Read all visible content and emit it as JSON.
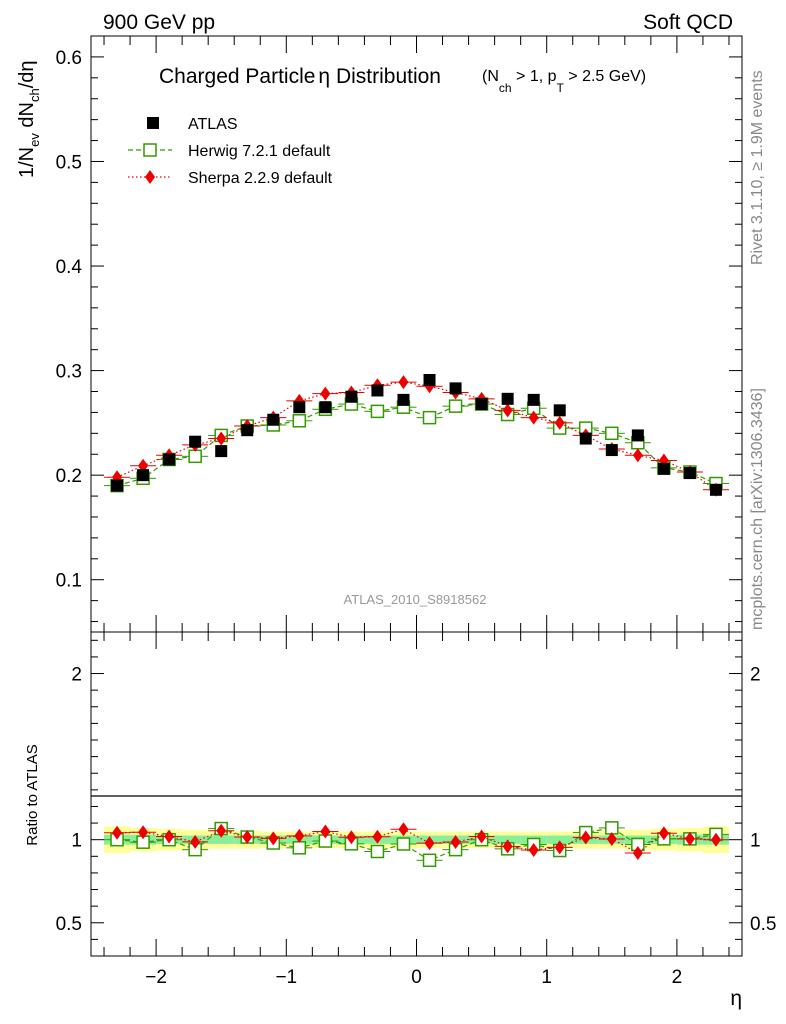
{
  "header": {
    "left": "900 GeV pp",
    "right": "Soft QCD"
  },
  "side_text": {
    "rivet": "Rivet 3.1.10, ≥ 1.9M events",
    "mcplots": "mcplots.cern.ch [arXiv:1306.3436]"
  },
  "chart_data": [
    {
      "type": "scatter",
      "title_main": "Charged Particle",
      "title_eta": "η",
      "title_rest": " Distribution",
      "title_cuts": {
        "open": "(N",
        "nch_sub": "ch",
        "mid": " > 1, p",
        "pt_sub": "T",
        "close": " > 2.5 GeV)"
      },
      "ylabel": {
        "prefix": "1/N",
        "sub1": "ev",
        "mid": " dN",
        "sub2": "ch",
        "suffix": "/dη"
      },
      "watermark": "ATLAS_2010_S8918562",
      "xlim": [
        -2.5,
        2.5
      ],
      "ylim": [
        0.05,
        0.62
      ],
      "yticks": [
        "0.1",
        "0.2",
        "0.3",
        "0.4",
        "0.5",
        "0.6"
      ],
      "ytick_values": [
        0.1,
        0.2,
        0.3,
        0.4,
        0.5,
        0.6
      ],
      "x": [
        -2.3,
        -2.1,
        -1.9,
        -1.7,
        -1.5,
        -1.3,
        -1.1,
        -0.9,
        -0.7,
        -0.5,
        -0.3,
        -0.1,
        0.1,
        0.3,
        0.5,
        0.7,
        0.9,
        1.1,
        1.3,
        1.5,
        1.7,
        1.9,
        2.1,
        2.3
      ],
      "series": [
        {
          "name": "ATLAS",
          "color": "#000000",
          "marker": "filled-square",
          "values": [
            0.19,
            0.2,
            0.215,
            0.232,
            0.223,
            0.243,
            0.253,
            0.265,
            0.265,
            0.275,
            0.281,
            0.272,
            0.291,
            0.283,
            0.268,
            0.273,
            0.272,
            0.262,
            0.235,
            0.224,
            0.238,
            0.206,
            0.202,
            0.186
          ]
        },
        {
          "name": "Herwig 7.2.1 default",
          "color": "#339900",
          "marker": "open-square",
          "line": "dashed",
          "values": [
            0.19,
            0.197,
            0.215,
            0.218,
            0.238,
            0.247,
            0.248,
            0.252,
            0.263,
            0.268,
            0.261,
            0.265,
            0.255,
            0.266,
            0.268,
            0.258,
            0.264,
            0.245,
            0.245,
            0.24,
            0.231,
            0.207,
            0.203,
            0.192
          ]
        },
        {
          "name": "Sherpa 2.2.9 default",
          "color": "#ee0000",
          "marker": "filled-diamond",
          "line": "dotted",
          "values": [
            0.198,
            0.209,
            0.219,
            0.229,
            0.235,
            0.247,
            0.255,
            0.271,
            0.278,
            0.279,
            0.286,
            0.289,
            0.285,
            0.279,
            0.273,
            0.262,
            0.255,
            0.25,
            0.238,
            0.225,
            0.219,
            0.214,
            0.203,
            0.186
          ]
        }
      ],
      "legend_position": "top-left"
    },
    {
      "type": "scatter",
      "ylabel": "Ratio to ATLAS",
      "xlabel": "η",
      "xlim": [
        -2.5,
        2.5
      ],
      "ylim": [
        0.3,
        2.25
      ],
      "xticks": [
        "−2",
        "−1",
        "0",
        "1",
        "2"
      ],
      "xtick_values": [
        -2,
        -1,
        0,
        1,
        2
      ],
      "yticks": [
        "0.5",
        "1",
        "2"
      ],
      "ytick_values": [
        0.5,
        1,
        2
      ],
      "reference_line": 1,
      "band_colors": {
        "inner": "#88ee99",
        "outer": "#ffff99"
      },
      "band_inner_halfwidth": [
        0.03,
        0.03,
        0.025,
        0.025,
        0.025,
        0.025,
        0.025,
        0.025,
        0.025,
        0.025,
        0.025,
        0.025,
        0.025,
        0.025,
        0.025,
        0.025,
        0.025,
        0.025,
        0.025,
        0.025,
        0.025,
        0.025,
        0.03,
        0.03
      ],
      "band_outer_halfwidth": [
        0.08,
        0.07,
        0.065,
        0.06,
        0.055,
        0.055,
        0.05,
        0.05,
        0.05,
        0.05,
        0.05,
        0.05,
        0.05,
        0.05,
        0.05,
        0.05,
        0.05,
        0.05,
        0.055,
        0.055,
        0.06,
        0.065,
        0.07,
        0.08
      ],
      "x": [
        -2.3,
        -2.1,
        -1.9,
        -1.7,
        -1.5,
        -1.3,
        -1.1,
        -0.9,
        -0.7,
        -0.5,
        -0.3,
        -0.1,
        0.1,
        0.3,
        0.5,
        0.7,
        0.9,
        1.1,
        1.3,
        1.5,
        1.7,
        1.9,
        2.1,
        2.3
      ],
      "series": [
        {
          "name": "Herwig 7.2.1 default",
          "color": "#339900",
          "marker": "open-square",
          "line": "dashed",
          "values": [
            1.0,
            0.985,
            1.0,
            0.94,
            1.067,
            1.016,
            0.98,
            0.951,
            0.992,
            0.975,
            0.929,
            0.974,
            0.876,
            0.94,
            1.0,
            0.945,
            0.971,
            0.935,
            1.043,
            1.071,
            0.971,
            1.005,
            1.005,
            1.032
          ]
        },
        {
          "name": "Sherpa 2.2.9 default",
          "color": "#ee0000",
          "marker": "filled-diamond",
          "line": "dotted",
          "values": [
            1.042,
            1.045,
            1.019,
            0.987,
            1.054,
            1.016,
            1.008,
            1.023,
            1.049,
            1.015,
            1.018,
            1.063,
            0.979,
            0.986,
            1.019,
            0.96,
            0.938,
            0.954,
            1.013,
            1.004,
            0.92,
            1.039,
            1.005,
            1.0
          ]
        }
      ]
    }
  ]
}
